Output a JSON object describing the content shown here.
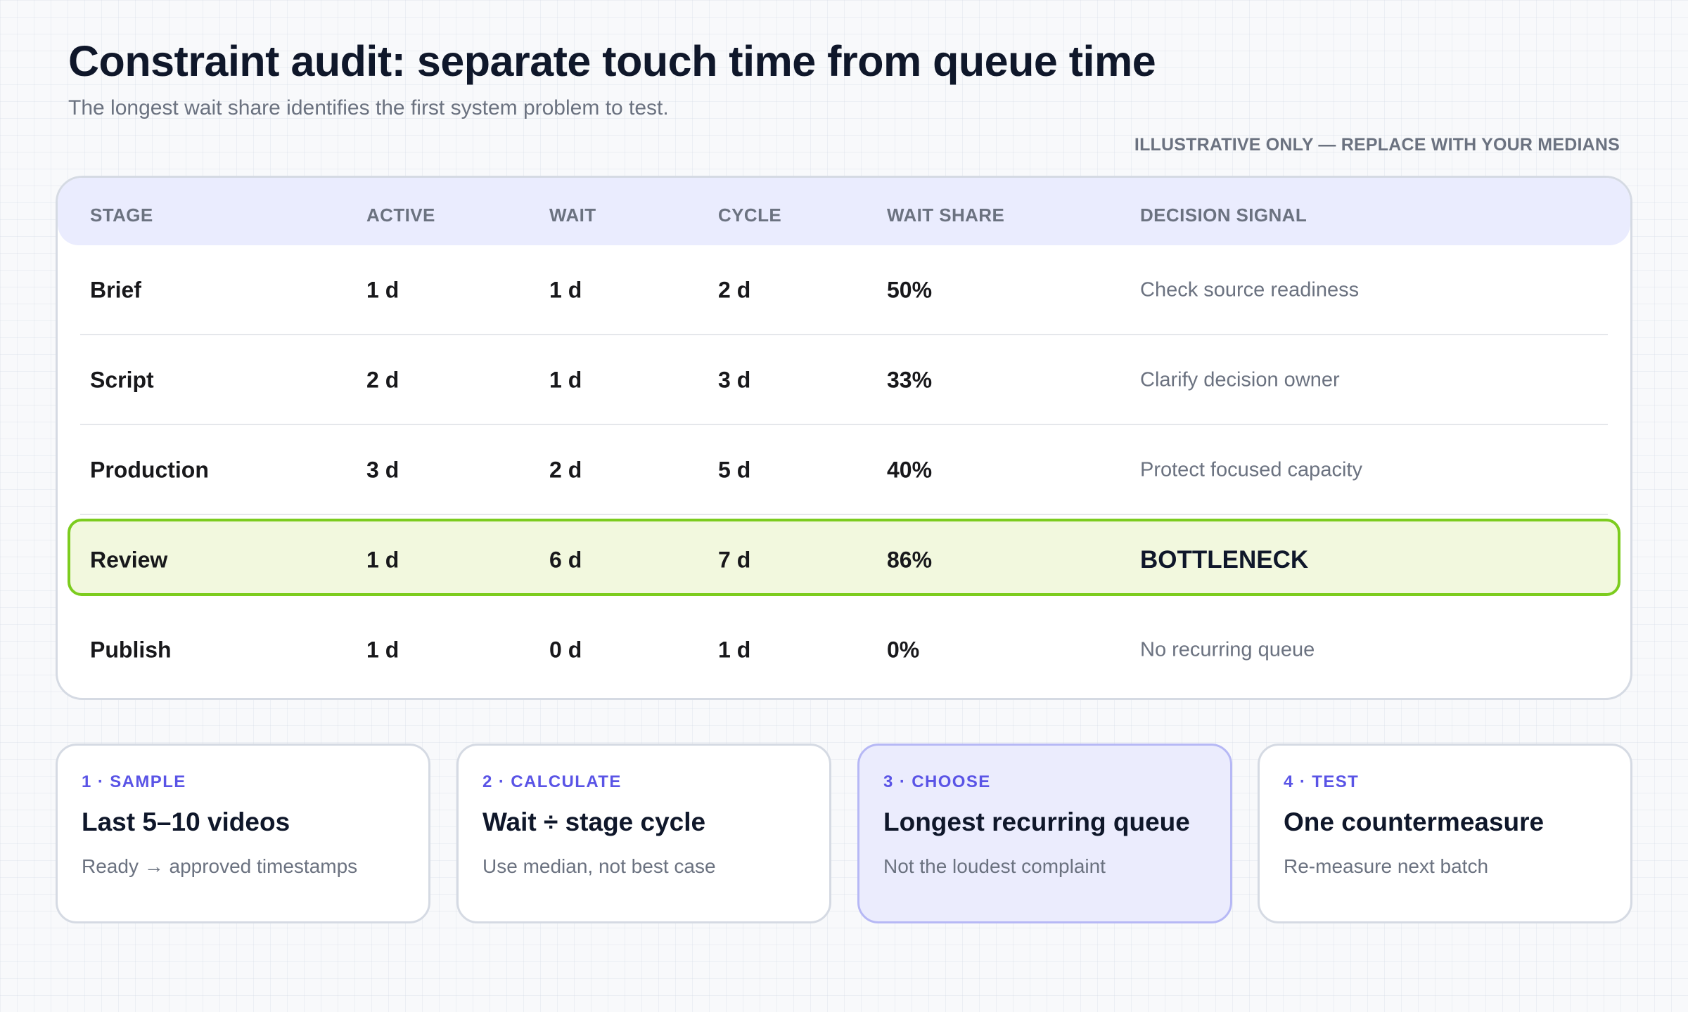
{
  "header": {
    "title": "Constraint audit: separate touch time from queue time",
    "subtitle": "The longest wait share identifies the first system problem to test.",
    "disclaimer": "ILLUSTRATIVE ONLY — REPLACE WITH YOUR MEDIANS"
  },
  "table": {
    "columns": [
      "STAGE",
      "ACTIVE",
      "WAIT",
      "CYCLE",
      "WAIT SHARE",
      "DECISION SIGNAL"
    ],
    "rows": [
      {
        "stage": "Brief",
        "active": "1 d",
        "wait": "1 d",
        "cycle": "2 d",
        "wait_share": "50%",
        "signal": "Check source readiness"
      },
      {
        "stage": "Script",
        "active": "2 d",
        "wait": "1 d",
        "cycle": "3 d",
        "wait_share": "33%",
        "signal": "Clarify decision owner"
      },
      {
        "stage": "Production",
        "active": "3 d",
        "wait": "2 d",
        "cycle": "5 d",
        "wait_share": "40%",
        "signal": "Protect focused capacity"
      },
      {
        "stage": "Review",
        "active": "1 d",
        "wait": "6 d",
        "cycle": "7 d",
        "wait_share": "86%",
        "signal": "BOTTLENECK"
      },
      {
        "stage": "Publish",
        "active": "1 d",
        "wait": "0 d",
        "cycle": "1 d",
        "wait_share": "0%",
        "signal": "No recurring queue"
      }
    ],
    "highlight_color": "#7ccc1e"
  },
  "steps": [
    {
      "label": "1 · SAMPLE",
      "title": "Last 5–10 videos",
      "desc": "Ready → approved timestamps"
    },
    {
      "label": "2 · CALCULATE",
      "title": "Wait ÷ stage cycle",
      "desc": "Use median, not best case"
    },
    {
      "label": "3 · CHOOSE",
      "title": "Longest recurring queue",
      "desc": "Not the loudest complaint"
    },
    {
      "label": "4 · TEST",
      "title": "One countermeasure",
      "desc": "Re-measure next batch"
    }
  ],
  "colors": {
    "accent": "#5a54e6",
    "header_band": "#eaecfe",
    "highlight_fill": "#f2f8de"
  }
}
